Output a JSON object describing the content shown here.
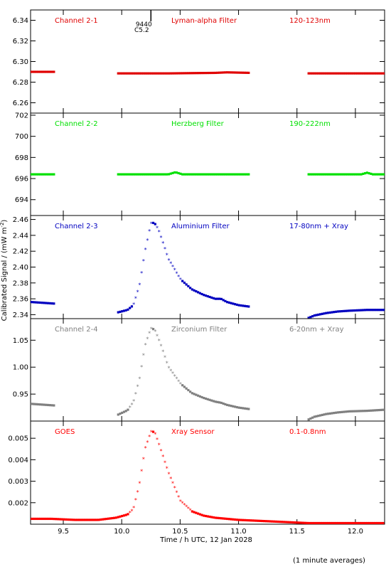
{
  "figure": {
    "ylabel": "Calibrated Signal / (mW m",
    "ylabel_sup": "-2",
    "ylabel_end": ")",
    "xlabel": "Time / h UTC, 12 Jan 2028",
    "footnote": "(1 minute averages)",
    "flare_marker": {
      "x": 10.25,
      "region": "9440",
      "class": "C5.2"
    }
  },
  "chart_data": [
    {
      "type": "scatter",
      "title": "Channel 2-1",
      "filter": "Lyman-alpha Filter",
      "band": "120-123nm",
      "color": "#e00000",
      "xlim": [
        9.22,
        12.25
      ],
      "ylim": [
        6.25,
        6.35
      ],
      "yticks": [
        "6.26",
        "6.28",
        "6.30",
        "6.32",
        "6.34"
      ],
      "ytick_values": [
        6.26,
        6.28,
        6.3,
        6.32,
        6.34
      ],
      "series": [
        {
          "x": [
            9.22,
            9.42
          ],
          "y": [
            6.29,
            6.29
          ]
        },
        {
          "x": [
            9.97,
            10.4,
            10.8,
            10.9,
            11.1
          ],
          "y": [
            6.2885,
            6.2885,
            6.289,
            6.2895,
            6.289
          ]
        },
        {
          "x": [
            11.6,
            12.25
          ],
          "y": [
            6.2885,
            6.2885
          ]
        }
      ]
    },
    {
      "type": "scatter",
      "title": "Channel 2-2",
      "filter": "Herzberg Filter",
      "band": "190-222nm",
      "color": "#00e000",
      "xlim": [
        9.22,
        12.25
      ],
      "ylim": [
        692.5,
        702.2
      ],
      "yticks": [
        "694",
        "696",
        "698",
        "700",
        "702"
      ],
      "ytick_values": [
        694,
        696,
        698,
        700,
        702
      ],
      "series": [
        {
          "x": [
            9.22,
            9.42
          ],
          "y": [
            696.4,
            696.4
          ]
        },
        {
          "x": [
            9.97,
            10.4,
            10.46,
            10.52,
            11.1
          ],
          "y": [
            696.4,
            696.4,
            696.6,
            696.4,
            696.4
          ]
        },
        {
          "x": [
            11.6,
            12.05,
            12.1,
            12.15,
            12.25
          ],
          "y": [
            696.4,
            696.4,
            696.55,
            696.4,
            696.4
          ]
        }
      ]
    },
    {
      "type": "scatter",
      "title": "Channel 2-3",
      "filter": "Aluminium Filter",
      "band": "17-80nm + Xray",
      "color": "#0000c0",
      "xlim": [
        9.22,
        12.25
      ],
      "ylim": [
        2.335,
        2.465
      ],
      "yticks": [
        "2.34",
        "2.36",
        "2.38",
        "2.40",
        "2.42",
        "2.44",
        "2.46"
      ],
      "ytick_values": [
        2.34,
        2.36,
        2.38,
        2.4,
        2.42,
        2.44,
        2.46
      ],
      "series": [
        {
          "x": [
            9.22,
            9.42
          ],
          "y": [
            2.356,
            2.354
          ]
        },
        {
          "x": [
            9.97,
            10.05,
            10.1,
            10.15,
            10.2,
            10.25,
            10.28,
            10.32,
            10.4,
            10.5,
            10.6,
            10.7,
            10.8,
            10.85,
            10.9,
            11.0,
            11.1
          ],
          "y": [
            2.343,
            2.346,
            2.352,
            2.375,
            2.42,
            2.455,
            2.456,
            2.445,
            2.41,
            2.385,
            2.372,
            2.365,
            2.36,
            2.36,
            2.356,
            2.352,
            2.35
          ]
        },
        {
          "x": [
            11.6,
            11.65,
            11.75,
            11.85,
            11.95,
            12.1,
            12.25
          ],
          "y": [
            2.336,
            2.339,
            2.342,
            2.344,
            2.345,
            2.346,
            2.346
          ]
        }
      ]
    },
    {
      "type": "scatter",
      "title": "Channel 2-4",
      "filter": "Zirconium Filter",
      "band": "6-20nm + Xray",
      "color": "#808080",
      "xlim": [
        9.22,
        12.25
      ],
      "ylim": [
        0.9,
        1.09
      ],
      "yticks": [
        "0.95",
        "1.00",
        "1.05"
      ],
      "ytick_values": [
        0.95,
        1.0,
        1.05
      ],
      "series": [
        {
          "x": [
            9.22,
            9.42
          ],
          "y": [
            0.932,
            0.929
          ]
        },
        {
          "x": [
            9.97,
            10.05,
            10.1,
            10.15,
            10.2,
            10.25,
            10.28,
            10.32,
            10.4,
            10.5,
            10.6,
            10.7,
            10.8,
            10.85,
            10.9,
            11.0,
            11.1
          ],
          "y": [
            0.912,
            0.92,
            0.935,
            0.975,
            1.04,
            1.072,
            1.07,
            1.05,
            1.0,
            0.97,
            0.952,
            0.943,
            0.936,
            0.934,
            0.93,
            0.925,
            0.922
          ]
        },
        {
          "x": [
            11.6,
            11.65,
            11.75,
            11.85,
            11.95,
            12.1,
            12.25
          ],
          "y": [
            0.903,
            0.908,
            0.913,
            0.916,
            0.918,
            0.919,
            0.921
          ]
        }
      ]
    },
    {
      "type": "scatter",
      "title": "GOES",
      "filter": "Xray Sensor",
      "band": "0.1-0.8nm",
      "color": "#ff0000",
      "xlim": [
        9.22,
        12.25
      ],
      "ylim": [
        0.001,
        0.0058
      ],
      "yticks": [
        "0.002",
        "0.003",
        "0.004",
        "0.005"
      ],
      "ytick_values": [
        0.002,
        0.003,
        0.004,
        0.005
      ],
      "xticks": [
        "9.5",
        "10.0",
        "10.5",
        "11.0",
        "11.5",
        "12.0"
      ],
      "xtick_values": [
        9.5,
        10.0,
        10.5,
        11.0,
        11.5,
        12.0
      ],
      "series": [
        {
          "x": [
            9.22,
            9.4,
            9.6,
            9.8,
            9.95,
            10.05,
            10.1,
            10.15,
            10.2,
            10.25,
            10.28,
            10.32,
            10.4,
            10.5,
            10.6,
            10.7,
            10.8,
            11.0,
            11.2,
            11.4,
            11.6,
            11.8,
            12.0,
            12.25
          ],
          "y": [
            0.00125,
            0.00125,
            0.0012,
            0.0012,
            0.0013,
            0.00145,
            0.0017,
            0.0028,
            0.0045,
            0.0053,
            0.0053,
            0.0047,
            0.0034,
            0.0021,
            0.0016,
            0.0014,
            0.0013,
            0.0012,
            0.00115,
            0.0011,
            0.00105,
            0.00105,
            0.00105,
            0.00105
          ]
        }
      ]
    }
  ]
}
